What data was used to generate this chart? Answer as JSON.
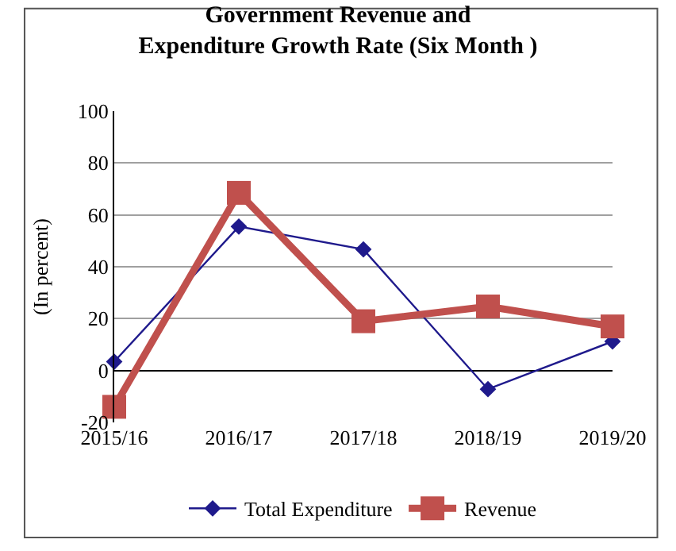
{
  "chart_data": {
    "type": "line",
    "title": "Government Revenue and\nExpenditure Growth Rate (Six Month )",
    "ylabel": "(In percent)",
    "categories": [
      "2015/16",
      "2016/17",
      "2017/18",
      "2018/19",
      "2019/20"
    ],
    "series": [
      {
        "name": "Total Expenditure",
        "color": "#1f1a8c",
        "values": [
          3.4,
          55.5,
          46.7,
          -7.2,
          11.2
        ],
        "marker": "diamond"
      },
      {
        "name": "Revenue",
        "color": "#c0504d",
        "values": [
          -14,
          68.5,
          19,
          24.7,
          17
        ],
        "marker": "square"
      }
    ],
    "ylim": [
      -20,
      100
    ],
    "yticks": [
      -20,
      0,
      20,
      40,
      60,
      80,
      100
    ],
    "grid": "y",
    "legend": "bottom",
    "line_style": "solid"
  }
}
